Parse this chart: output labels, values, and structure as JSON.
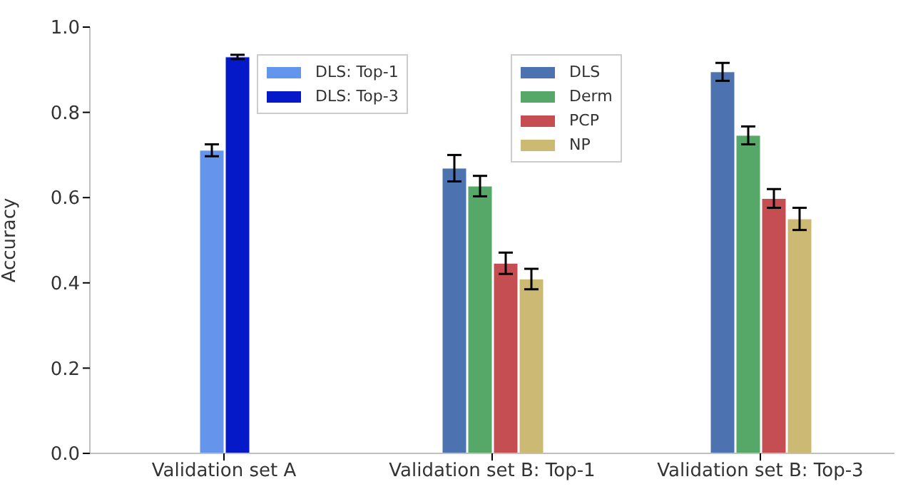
{
  "chart_data": {
    "type": "bar",
    "ylabel": "Accuracy",
    "categories": [
      "Validation set A",
      "Validation set B: Top-1",
      "Validation set B: Top-3"
    ],
    "series": [
      {
        "name": "DLS: Top-1",
        "color": "#6495ed",
        "values": [
          0.711,
          null,
          null
        ],
        "errors": [
          0.014,
          null,
          null
        ]
      },
      {
        "name": "DLS: Top-3",
        "color": "#0619c9",
        "values": [
          0.93,
          null,
          null
        ],
        "errors": [
          0.005,
          null,
          null
        ]
      },
      {
        "name": "DLS",
        "color": "#4c72b0",
        "values": [
          null,
          0.669,
          0.895
        ],
        "errors": [
          null,
          0.031,
          0.021
        ]
      },
      {
        "name": "Derm",
        "color": "#55a868",
        "values": [
          null,
          0.627,
          0.746
        ],
        "errors": [
          null,
          0.024,
          0.021
        ]
      },
      {
        "name": "PCP",
        "color": "#c44e52",
        "values": [
          null,
          0.446,
          0.598
        ],
        "errors": [
          null,
          0.025,
          0.022
        ]
      },
      {
        "name": "NP",
        "color": "#ccb974",
        "values": [
          null,
          0.409,
          0.55
        ],
        "errors": [
          null,
          0.024,
          0.026
        ]
      }
    ],
    "ylim": [
      0,
      1
    ],
    "yticks": [
      {
        "value": 0,
        "label": "0.0"
      },
      {
        "value": 0.2,
        "label": "0.2"
      },
      {
        "value": 0.4,
        "label": "0.4"
      },
      {
        "value": 0.6,
        "label": "0.6"
      },
      {
        "value": 0.8,
        "label": "0.8"
      },
      {
        "value": 1,
        "label": "1.0"
      }
    ],
    "legend": "top"
  }
}
